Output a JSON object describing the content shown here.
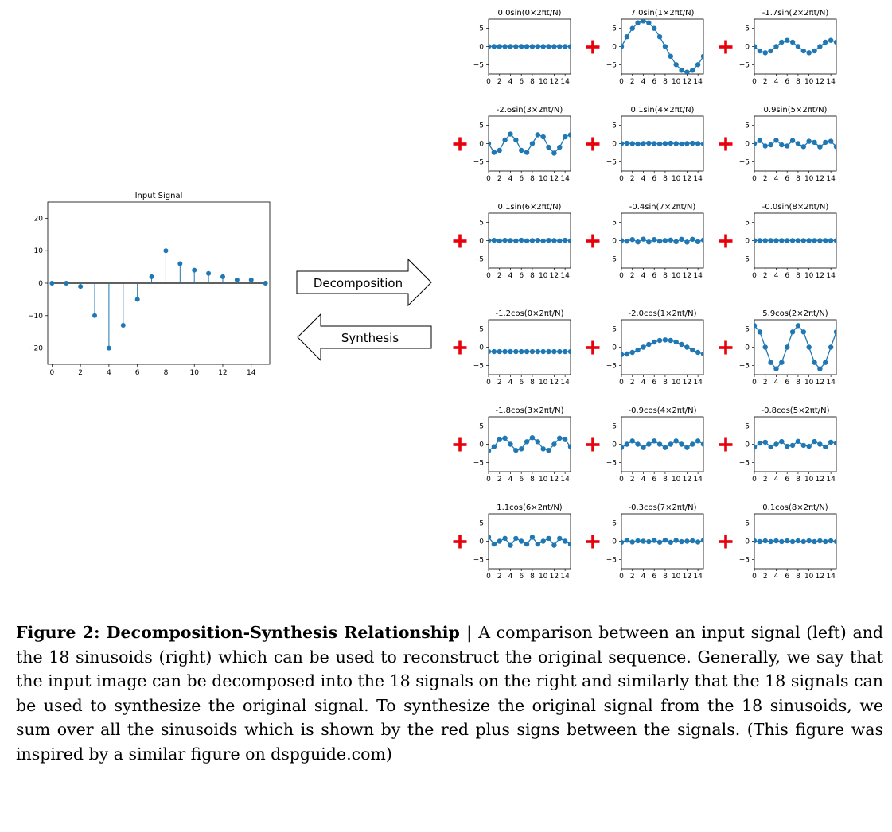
{
  "chart_data": [
    {
      "type": "stem",
      "title": "Input Signal",
      "x": [
        0,
        1,
        2,
        3,
        4,
        5,
        6,
        7,
        8,
        9,
        10,
        11,
        12,
        13,
        14,
        15
      ],
      "values": [
        0,
        0,
        -1,
        -10,
        -20,
        -13,
        -5,
        2,
        10,
        6,
        4,
        3,
        2,
        1,
        1,
        0
      ],
      "xlim": [
        -0.3,
        15.3
      ],
      "ylim": [
        -25,
        25
      ],
      "xticks": [
        0,
        2,
        4,
        6,
        8,
        10,
        12,
        14
      ],
      "yticks": [
        -20,
        -10,
        0,
        10,
        20
      ],
      "ytick_labels": [
        "−20",
        "−10",
        "0",
        "10",
        "20"
      ]
    },
    {
      "type": "line",
      "title": "0.0sin(0×2πt/N)",
      "func": "sin",
      "k": 0,
      "amp": 0.0
    },
    {
      "type": "line",
      "title": "7.0sin(1×2πt/N)",
      "func": "sin",
      "k": 1,
      "amp": 7.0
    },
    {
      "type": "line",
      "title": "-1.7sin(2×2πt/N)",
      "func": "sin",
      "k": 2,
      "amp": -1.7
    },
    {
      "type": "line",
      "title": "-2.6sin(3×2πt/N)",
      "func": "sin",
      "k": 3,
      "amp": -2.6
    },
    {
      "type": "line",
      "title": "0.1sin(4×2πt/N)",
      "func": "sin",
      "k": 4,
      "amp": 0.1
    },
    {
      "type": "line",
      "title": "0.9sin(5×2πt/N)",
      "func": "sin",
      "k": 5,
      "amp": 0.9
    },
    {
      "type": "line",
      "title": "0.1sin(6×2πt/N)",
      "func": "sin",
      "k": 6,
      "amp": 0.1
    },
    {
      "type": "line",
      "title": "-0.4sin(7×2πt/N)",
      "func": "sin",
      "k": 7,
      "amp": -0.4
    },
    {
      "type": "line",
      "title": "-0.0sin(8×2πt/N)",
      "func": "sin",
      "k": 8,
      "amp": 0.0
    },
    {
      "type": "line",
      "title": "-1.2cos(0×2πt/N)",
      "func": "cos",
      "k": 0,
      "amp": -1.2
    },
    {
      "type": "line",
      "title": "-2.0cos(1×2πt/N)",
      "func": "cos",
      "k": 1,
      "amp": -2.0
    },
    {
      "type": "line",
      "title": "5.9cos(2×2πt/N)",
      "func": "cos",
      "k": 2,
      "amp": 5.9
    },
    {
      "type": "line",
      "title": "-1.8cos(3×2πt/N)",
      "func": "cos",
      "k": 3,
      "amp": -1.8
    },
    {
      "type": "line",
      "title": "-0.9cos(4×2πt/N)",
      "func": "cos",
      "k": 4,
      "amp": -0.9
    },
    {
      "type": "line",
      "title": "-0.8cos(5×2πt/N)",
      "func": "cos",
      "k": 5,
      "amp": -0.8
    },
    {
      "type": "line",
      "title": "1.1cos(6×2πt/N)",
      "func": "cos",
      "k": 6,
      "amp": 1.1
    },
    {
      "type": "line",
      "title": "-0.3cos(7×2πt/N)",
      "func": "cos",
      "k": 7,
      "amp": -0.3
    },
    {
      "type": "line",
      "title": "0.1cos(8×2πt/N)",
      "func": "cos",
      "k": 8,
      "amp": 0.1
    }
  ],
  "small_axes": {
    "N": 16,
    "xlim": [
      0,
      15
    ],
    "ylim": [
      -7.5,
      7.5
    ],
    "xticks": [
      0,
      2,
      4,
      6,
      8,
      10,
      12,
      14
    ],
    "yticks": [
      5,
      0,
      -5
    ],
    "ytick_labels": [
      "5",
      "0",
      "−5"
    ]
  },
  "arrows": {
    "decomposition": "Decomposition",
    "synthesis": "Synthesis"
  },
  "plus_sign": "+",
  "colors": {
    "series": "#1f77b4",
    "plus": "#e8000b"
  },
  "caption": {
    "label": "Figure 2: Decomposition-Synthesis Relationship |",
    "text": " A comparison between an input signal (left) and the 18 sinusoids (right) which can be used to reconstruct the original sequence. Generally, we say that the input image can be decomposed into the 18 signals on the right and similarly that the 18 signals can be used to synthesize the original signal. To synthesize the original signal from the 18 sinusoids, we sum over all the sinusoids which is shown by the red plus signs between the signals. (This figure was inspired by a similar figure on dspguide.com)"
  }
}
